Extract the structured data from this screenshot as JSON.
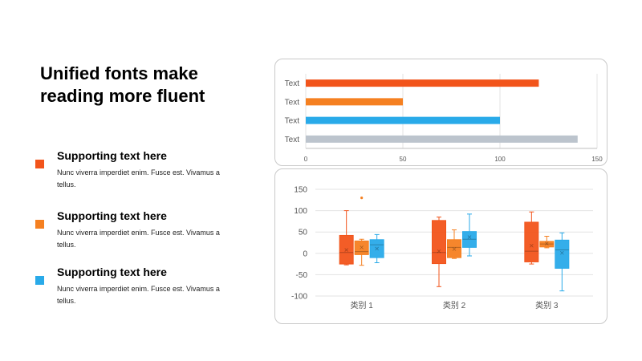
{
  "slide": {
    "title": "Unified fonts make reading more fluent",
    "items": [
      {
        "heading": "Supporting text here",
        "body": "Nunc viverra imperdiet enim. Fusce est. Vivamus a tellus.",
        "color": "#F2541B"
      },
      {
        "heading": "Supporting text here",
        "body": "Nunc viverra imperdiet enim. Fusce est. Vivamus a tellus.",
        "color": "#F58021"
      },
      {
        "heading": "Supporting text here",
        "body": "Nunc viverra imperdiet enim. Fusce est. Vivamus a tellus.",
        "color": "#29AAE9"
      }
    ]
  },
  "chart_data": [
    {
      "type": "bar",
      "orientation": "horizontal",
      "categories": [
        "Text",
        "Text",
        "Text",
        "Text"
      ],
      "values": [
        120,
        50,
        100,
        140
      ],
      "colors": [
        "#F2541B",
        "#F58021",
        "#29AAE9",
        "#BCC4CD"
      ],
      "xlim": [
        0,
        150
      ],
      "xticks": [
        0,
        50,
        100,
        150
      ],
      "grid": "vertical"
    },
    {
      "type": "box",
      "categories": [
        "类别 1",
        "类别 2",
        "类别 3"
      ],
      "ylim": [
        -100,
        150
      ],
      "yticks": [
        -100,
        -50,
        0,
        50,
        100,
        150
      ],
      "grid": "horizontal",
      "series": [
        {
          "color": "#F2541B",
          "boxes": [
            {
              "min": -27,
              "q1": -25,
              "median": 2,
              "q3": 42,
              "max": 100,
              "mean": 8,
              "outliers": []
            },
            {
              "min": -78,
              "q1": -24,
              "median": 2,
              "q3": 77,
              "max": 85,
              "mean": 5,
              "outliers": []
            },
            {
              "min": -25,
              "q1": -20,
              "median": 5,
              "q3": 73,
              "max": 97,
              "mean": 18,
              "outliers": []
            }
          ]
        },
        {
          "color": "#F58021",
          "boxes": [
            {
              "min": -28,
              "q1": -3,
              "median": 4,
              "q3": 29,
              "max": 33,
              "mean": 14,
              "outliers": [
                130
              ]
            },
            {
              "min": -12,
              "q1": -10,
              "median": 14,
              "q3": 32,
              "max": 55,
              "mean": 10,
              "outliers": []
            },
            {
              "min": 13,
              "q1": 15,
              "median": 22,
              "q3": 28,
              "max": 40,
              "mean": 23,
              "outliers": []
            }
          ]
        },
        {
          "color": "#29AAE9",
          "boxes": [
            {
              "min": -22,
              "q1": -10,
              "median": 20,
              "q3": 32,
              "max": 44,
              "mean": 11,
              "outliers": []
            },
            {
              "min": -6,
              "q1": 14,
              "median": 33,
              "q3": 51,
              "max": 92,
              "mean": 38,
              "outliers": []
            },
            {
              "min": -88,
              "q1": -35,
              "median": 8,
              "q3": 31,
              "max": 48,
              "mean": 1,
              "outliers": []
            }
          ]
        }
      ]
    }
  ]
}
